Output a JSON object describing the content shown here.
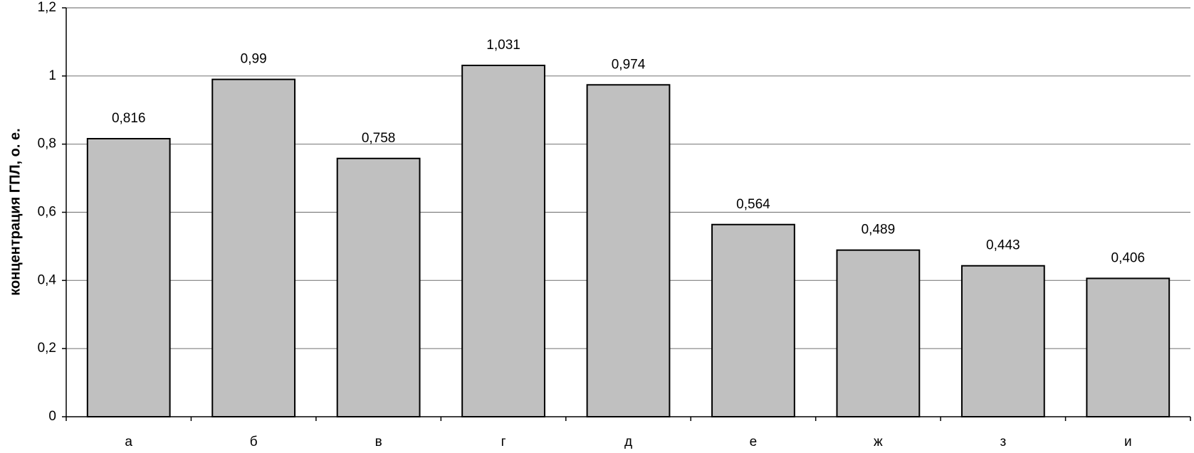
{
  "chart_data": {
    "type": "bar",
    "y_label": "концентрация ГПЛ, о. е.",
    "categories": [
      "а",
      "б",
      "в",
      "г",
      "д",
      "е",
      "ж",
      "з",
      "и"
    ],
    "values": [
      0.816,
      0.99,
      0.758,
      1.031,
      0.974,
      0.564,
      0.489,
      0.443,
      0.406
    ],
    "value_labels": [
      "0,816",
      "0,99",
      "0,758",
      "1,031",
      "0,974",
      "0,564",
      "0,489",
      "0,443",
      "0,406"
    ],
    "color": "#c0c0c0",
    "ylim": [
      0,
      1.2
    ],
    "yticks": [
      0,
      {
        "value": 0.2,
        "label": "0,2"
      },
      {
        "value": 0.4,
        "label": "0,4"
      },
      {
        "value": 0.6,
        "label": "0,6"
      },
      {
        "value": 0.8,
        "label": "0,8"
      },
      1,
      {
        "value": 1.2,
        "label": "1,2"
      }
    ],
    "grid": true
  }
}
